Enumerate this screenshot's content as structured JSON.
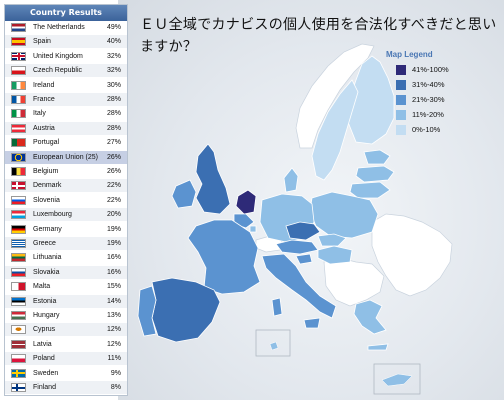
{
  "question": "ＥＵ全域でカナビスの個人使用を合法化すべきだと思いますか？",
  "results": {
    "title": "Country Results",
    "rows": [
      {
        "name": "The Netherlands",
        "pct": "49%",
        "flag": "flag-netherlands-icon"
      },
      {
        "name": "Spain",
        "pct": "40%",
        "flag": "flag-spain-icon"
      },
      {
        "name": "United Kingdom",
        "pct": "32%",
        "flag": "flag-united-kingdom-icon"
      },
      {
        "name": "Czech Republic",
        "pct": "32%",
        "flag": "flag-czech-republic-icon"
      },
      {
        "name": "Ireland",
        "pct": "30%",
        "flag": "flag-ireland-icon"
      },
      {
        "name": "France",
        "pct": "28%",
        "flag": "flag-france-icon"
      },
      {
        "name": "Italy",
        "pct": "28%",
        "flag": "flag-italy-icon"
      },
      {
        "name": "Austria",
        "pct": "28%",
        "flag": "flag-austria-icon"
      },
      {
        "name": "Portugal",
        "pct": "27%",
        "flag": "flag-portugal-icon"
      },
      {
        "name": "European Union (25)",
        "pct": "26%",
        "flag": "flag-european-union-icon",
        "highlight": true
      },
      {
        "name": "Belgium",
        "pct": "26%",
        "flag": "flag-belgium-icon"
      },
      {
        "name": "Denmark",
        "pct": "22%",
        "flag": "flag-denmark-icon"
      },
      {
        "name": "Slovenia",
        "pct": "22%",
        "flag": "flag-slovenia-icon"
      },
      {
        "name": "Luxembourg",
        "pct": "20%",
        "flag": "flag-luxembourg-icon"
      },
      {
        "name": "Germany",
        "pct": "19%",
        "flag": "flag-germany-icon"
      },
      {
        "name": "Greece",
        "pct": "19%",
        "flag": "flag-greece-icon"
      },
      {
        "name": "Lithuania",
        "pct": "16%",
        "flag": "flag-lithuania-icon"
      },
      {
        "name": "Slovakia",
        "pct": "16%",
        "flag": "flag-slovakia-icon"
      },
      {
        "name": "Malta",
        "pct": "15%",
        "flag": "flag-malta-icon"
      },
      {
        "name": "Estonia",
        "pct": "14%",
        "flag": "flag-estonia-icon"
      },
      {
        "name": "Hungary",
        "pct": "13%",
        "flag": "flag-hungary-icon"
      },
      {
        "name": "Cyprus",
        "pct": "12%",
        "flag": "flag-cyprus-icon"
      },
      {
        "name": "Latvia",
        "pct": "12%",
        "flag": "flag-latvia-icon"
      },
      {
        "name": "Poland",
        "pct": "11%",
        "flag": "flag-poland-icon"
      },
      {
        "name": "Sweden",
        "pct": "9%",
        "flag": "flag-sweden-icon"
      },
      {
        "name": "Finland",
        "pct": "8%",
        "flag": "flag-finland-icon"
      }
    ]
  },
  "legend": {
    "title": "Map Legend",
    "items": [
      {
        "label": "41%-100%",
        "color": "#2e2a78"
      },
      {
        "label": "31%-40%",
        "color": "#3b6fb2"
      },
      {
        "label": "21%-30%",
        "color": "#5b93d0"
      },
      {
        "label": "11%-20%",
        "color": "#8fbfe6"
      },
      {
        "label": "0%-10%",
        "color": "#c3ddf2"
      }
    ]
  },
  "colors": {
    "panel_header": "#4a72a8",
    "highlight_row": "#c6cfe4",
    "non_eu_land": "#ffffff"
  }
}
